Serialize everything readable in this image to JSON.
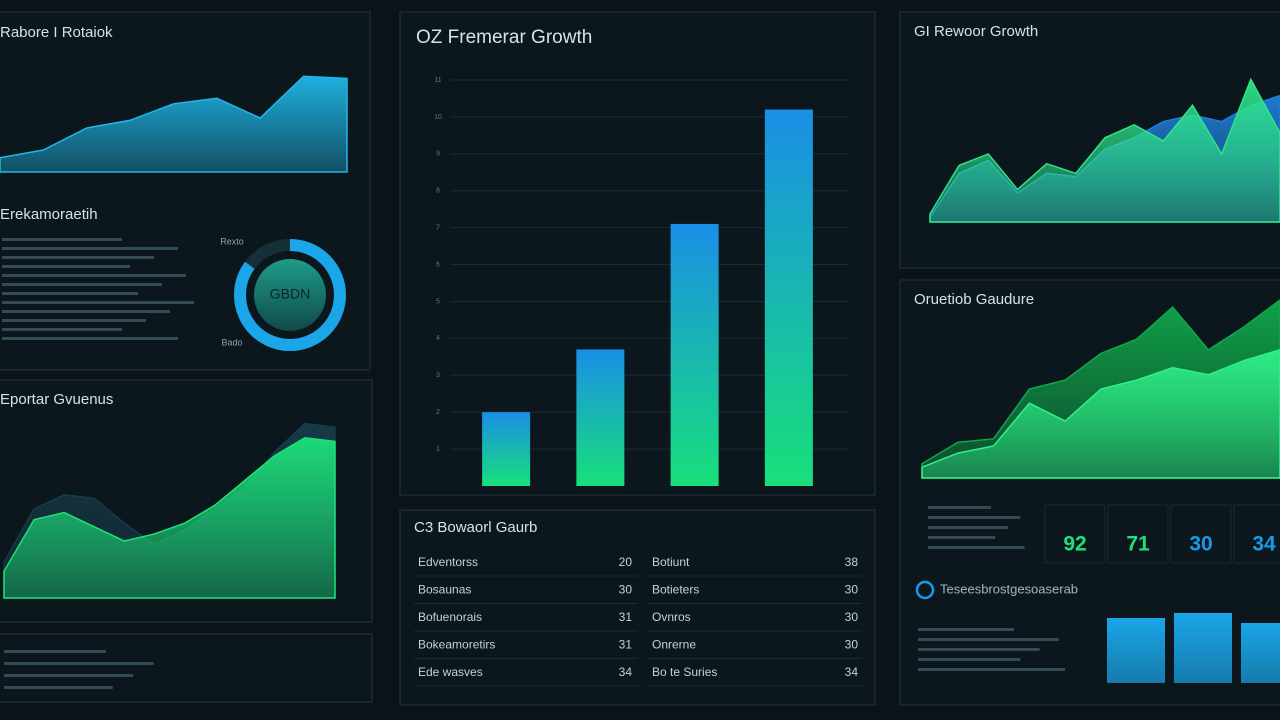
{
  "panels": {
    "revenue_trend": {
      "title": "Rabore I Rotaiok",
      "chart_data": {
        "type": "area",
        "ylim": [
          0,
          100
        ],
        "series": [
          {
            "color": "#1fb8e8",
            "values": [
              13,
              20,
              40,
              47,
              62,
              67,
              49,
              87,
              85
            ]
          }
        ]
      }
    },
    "summary": {
      "title": "Erekamoraetih",
      "chart_data": {
        "type": "donut",
        "center_label": "GBDN",
        "top_label": "Rexto",
        "bottom_label": "Bado",
        "value": 85,
        "max": 100,
        "color": "#1aa6e8"
      }
    },
    "expense_trend": {
      "title": "Eportar Gvuenus",
      "chart_data": {
        "type": "area",
        "ylim": [
          0,
          100
        ],
        "series": [
          {
            "color": "#163c4a",
            "values": [
              20,
              50,
              58,
              56,
              42,
              30,
              38,
              50,
              62,
              82,
              98,
              96
            ]
          },
          {
            "color": "#1de27a",
            "values": [
              15,
              44,
              48,
              40,
              32,
              36,
              42,
              52,
              66,
              80,
              90,
              88
            ]
          }
        ]
      }
    },
    "quarterly_growth": {
      "title": "OZ Fremerar Growth",
      "chart_data": {
        "type": "bar",
        "ylim": [
          0,
          11
        ],
        "yticks": [
          1,
          2,
          3,
          4,
          5,
          6,
          7,
          8,
          9,
          10,
          11
        ],
        "grid": true,
        "gradient": [
          "#1a8fe6",
          "#18e07a"
        ],
        "values": [
          2,
          3.7,
          7.1,
          10.2
        ]
      }
    },
    "detail_table": {
      "title": "C3 Bowaorl Gaurb",
      "rows": [
        [
          "Edventorss",
          "20",
          "Botiunt",
          "38"
        ],
        [
          "Bosaunas",
          "30",
          "Botieters",
          "30"
        ],
        [
          "Bofuenorais",
          "31",
          "Ovnros",
          "30"
        ],
        [
          "Bokeamoretirs",
          "31",
          "Onrerne",
          "30"
        ],
        [
          "Ede wasves",
          "34",
          "Bo te Suries",
          "34"
        ]
      ]
    },
    "growth_compare": {
      "title": "GI Rewoor Growth",
      "chart_data": {
        "type": "area",
        "ylim": [
          0,
          100
        ],
        "series": [
          {
            "color": "#1f7fd8",
            "values": [
              3,
              30,
              38,
              18,
              30,
              28,
              45,
              52,
              62,
              66,
              62,
              72,
              78
            ]
          },
          {
            "color": "#2ee58a",
            "values": [
              5,
              35,
              42,
              20,
              36,
              30,
              52,
              60,
              50,
              72,
              42,
              88,
              55
            ]
          }
        ]
      }
    },
    "outlook": {
      "title": "Oruetiob Gaudure",
      "chart_data": {
        "type": "area",
        "ylim": [
          0,
          100
        ],
        "series": [
          {
            "color": "#10a84a",
            "values": [
              8,
              20,
              22,
              50,
              55,
              70,
              78,
              96,
              72,
              85,
              100
            ]
          },
          {
            "color": "#2ff08a",
            "values": [
              6,
              14,
              18,
              42,
              32,
              50,
              55,
              62,
              58,
              66,
              72
            ]
          }
        ]
      },
      "kpis": [
        {
          "value": 92,
          "color": "#1de27a"
        },
        {
          "value": 71,
          "color": "#1de27a"
        },
        {
          "value": 30,
          "color": "#1a9ae8"
        },
        {
          "value": 34,
          "color": "#1a9ae8"
        }
      ],
      "status": "Teseesbrostgesoaserab",
      "mini_bars": {
        "type": "bar",
        "ylim": [
          0,
          100
        ],
        "color": "#1aa6e8",
        "values": [
          65,
          70,
          60
        ]
      }
    }
  }
}
